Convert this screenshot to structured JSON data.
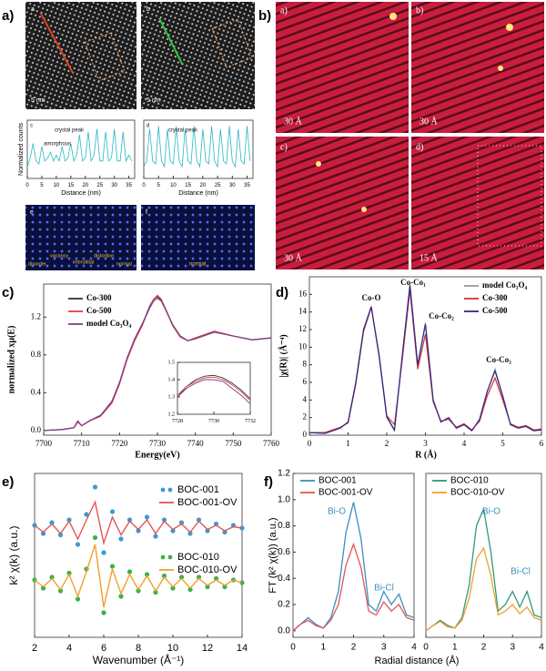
{
  "panel_labels": [
    "a)",
    "b)",
    "c)",
    "d)",
    "e)",
    "f)"
  ],
  "images": {
    "a": {
      "labels": [
        "a",
        "b",
        "5 nm",
        "5 nm",
        "e",
        "f",
        "disorder",
        "vacancy",
        "interstitial",
        "distortion",
        "normal",
        "normal"
      ]
    },
    "b": {
      "labels": [
        "a)",
        "b)",
        "c)",
        "d)",
        "30 Å",
        "30 Å",
        "30 Å",
        "15 Å"
      ]
    }
  },
  "chart_data": [
    {
      "type": "line",
      "xlabel": "Distance (nm)",
      "ylabel": "Normalized counts",
      "annotations": [
        "c",
        "crystal peak",
        "amorphous"
      ],
      "xlim": [
        0,
        37
      ],
      "xticks": [
        0,
        5,
        10,
        15,
        20,
        25,
        30,
        35
      ],
      "ylim": [
        0,
        1
      ],
      "x": [
        0,
        1,
        2,
        3,
        4,
        5,
        6,
        7,
        8,
        9,
        10,
        11,
        12,
        13,
        14,
        15,
        16,
        17,
        18,
        19,
        20,
        21,
        22,
        23,
        24,
        25,
        26,
        27,
        28,
        29,
        30,
        31,
        32,
        33,
        34,
        35,
        36
      ],
      "series": [
        {
          "color": "#2ab7c4",
          "values": [
            0.2,
            0.35,
            0.6,
            0.3,
            0.25,
            0.55,
            0.3,
            0.35,
            0.45,
            0.3,
            0.4,
            0.3,
            0.55,
            0.3,
            0.35,
            0.6,
            0.3,
            0.4,
            0.75,
            0.3,
            0.35,
            0.8,
            0.3,
            0.4,
            0.85,
            0.3,
            0.3,
            0.8,
            0.3,
            0.35,
            0.85,
            0.3,
            0.3,
            0.8,
            0.3,
            0.4,
            0.3
          ]
        }
      ]
    },
    {
      "type": "line",
      "xlabel": "Distance (nm)",
      "annotations": [
        "d",
        "crystal peak"
      ],
      "xlim": [
        0,
        37
      ],
      "xticks": [
        0,
        5,
        10,
        15,
        20,
        25,
        30,
        35
      ],
      "ylim": [
        0,
        1
      ],
      "x": [
        0,
        1,
        2,
        3,
        4,
        5,
        6,
        7,
        8,
        9,
        10,
        11,
        12,
        13,
        14,
        15,
        16,
        17,
        18,
        19,
        20,
        21,
        22,
        23,
        24,
        25,
        26,
        27,
        28,
        29,
        30,
        31,
        32,
        33,
        34,
        35,
        36
      ],
      "series": [
        {
          "color": "#2ab7c4",
          "values": [
            0.2,
            0.3,
            0.85,
            0.3,
            0.25,
            0.9,
            0.3,
            0.2,
            0.85,
            0.3,
            0.25,
            0.9,
            0.3,
            0.2,
            0.85,
            0.3,
            0.25,
            0.9,
            0.3,
            0.2,
            0.85,
            0.3,
            0.25,
            0.9,
            0.3,
            0.2,
            0.85,
            0.3,
            0.25,
            0.9,
            0.3,
            0.2,
            0.85,
            0.3,
            0.25,
            0.9,
            0.3
          ]
        }
      ]
    },
    {
      "type": "line",
      "xlabel": "Energy(eV)",
      "ylabel": "normalized xμ(E)",
      "xlim": [
        7700,
        7760
      ],
      "xticks": [
        7700,
        7710,
        7720,
        7730,
        7740,
        7750,
        7760
      ],
      "ylim": [
        -0.05,
        1.55
      ],
      "yticks": [
        {
          "value": 0,
          "label": "0.0"
        },
        0.4,
        0.8,
        1.2
      ],
      "x": [
        7700,
        7705,
        7708,
        7709,
        7710,
        7712,
        7715,
        7718,
        7720,
        7722,
        7724,
        7726,
        7728,
        7729,
        7730,
        7731,
        7732,
        7734,
        7736,
        7738,
        7740,
        7745,
        7750,
        7755,
        7760
      ],
      "series": [
        {
          "name": "Co-300",
          "color": "#333333",
          "values": [
            0,
            0.01,
            0.03,
            0.1,
            0.05,
            0.1,
            0.16,
            0.3,
            0.5,
            0.76,
            0.96,
            1.12,
            1.32,
            1.39,
            1.42,
            1.38,
            1.3,
            1.12,
            1.0,
            0.95,
            0.98,
            1.05,
            1.0,
            0.96,
            0.98
          ]
        },
        {
          "name": "Co-500",
          "color": "#e04040",
          "values": [
            0,
            0.01,
            0.03,
            0.09,
            0.05,
            0.1,
            0.15,
            0.29,
            0.49,
            0.75,
            0.95,
            1.11,
            1.31,
            1.39,
            1.43,
            1.39,
            1.3,
            1.11,
            0.99,
            0.95,
            0.98,
            1.05,
            1.0,
            0.96,
            0.98
          ]
        },
        {
          "name": "model Co₃O₄",
          "color": "#7a3f8f",
          "values": [
            0,
            0.01,
            0.03,
            0.1,
            0.05,
            0.1,
            0.16,
            0.31,
            0.51,
            0.77,
            0.97,
            1.13,
            1.3,
            1.37,
            1.4,
            1.37,
            1.29,
            1.12,
            1.0,
            0.95,
            0.97,
            1.04,
            1.0,
            0.96,
            0.98
          ]
        }
      ]
    },
    {
      "type": "line",
      "xlim": [
        7728,
        7732
      ],
      "xticks": [
        7728,
        7730,
        7732
      ],
      "ylim": [
        1.2,
        1.5
      ],
      "yticks": [
        1.2,
        1.3,
        1.4,
        1.5
      ],
      "x": [
        7728,
        7728.5,
        7729,
        7729.5,
        7730,
        7730.5,
        7731,
        7731.5,
        7732
      ],
      "series": [
        {
          "color": "#333333",
          "values": [
            1.3,
            1.36,
            1.4,
            1.42,
            1.425,
            1.41,
            1.38,
            1.34,
            1.29
          ]
        },
        {
          "color": "#e04040",
          "values": [
            1.31,
            1.36,
            1.39,
            1.41,
            1.415,
            1.4,
            1.37,
            1.33,
            1.28
          ]
        },
        {
          "color": "#7a3f8f",
          "values": [
            1.3,
            1.35,
            1.38,
            1.4,
            1.4,
            1.39,
            1.35,
            1.31,
            1.26
          ]
        }
      ]
    },
    {
      "type": "line",
      "xlabel": "R (Å)",
      "ylabel": "|χ(R)| (Å⁻⁴)",
      "annotations": [
        "Co-O",
        "Co-Co₁",
        "Co-Co₂",
        "Co-Co₃"
      ],
      "xlim": [
        0,
        6
      ],
      "xticks": [
        0,
        1,
        2,
        3,
        4,
        5,
        6
      ],
      "ylim": [
        0,
        18
      ],
      "yticks": [
        0,
        2,
        4,
        6,
        8,
        10,
        12,
        14,
        16
      ],
      "x": [
        0,
        0.4,
        0.8,
        1.0,
        1.2,
        1.4,
        1.6,
        1.8,
        2.0,
        2.2,
        2.4,
        2.6,
        2.8,
        3.0,
        3.2,
        3.4,
        3.6,
        3.8,
        4.0,
        4.2,
        4.4,
        4.6,
        4.8,
        5.0,
        5.2,
        5.4,
        5.6,
        5.8,
        6.0
      ],
      "series": [
        {
          "name": "model Co₃O₄",
          "color": "#9a9a9a",
          "values": [
            0.3,
            0.2,
            0.8,
            1.5,
            6,
            12,
            14.6,
            9,
            2,
            0.5,
            9,
            17.2,
            8,
            12.8,
            4,
            1.5,
            2,
            0.8,
            1.2,
            0.5,
            1.8,
            5,
            7.5,
            4.5,
            1.2,
            0.8,
            1,
            0.5,
            0.6
          ]
        },
        {
          "name": "Co-300",
          "color": "#d93030",
          "values": [
            0.3,
            0.3,
            0.9,
            1.4,
            5.8,
            11.8,
            14.5,
            9.2,
            2.2,
            1.2,
            8.5,
            16.5,
            7.5,
            11.5,
            3.8,
            1.6,
            1.8,
            0.9,
            1.3,
            0.6,
            1.6,
            4.5,
            6.5,
            4,
            1.3,
            0.9,
            1.1,
            0.6,
            0.7
          ]
        },
        {
          "name": "Co-500",
          "color": "#2a2a8a",
          "values": [
            0.3,
            0.2,
            0.8,
            1.5,
            6,
            12,
            14.6,
            9.1,
            2.1,
            0.6,
            9,
            17,
            8,
            12.6,
            4,
            1.5,
            2,
            0.8,
            1.2,
            0.5,
            1.8,
            5,
            7.3,
            4.4,
            1.2,
            0.8,
            1,
            0.5,
            0.6
          ]
        }
      ]
    },
    {
      "type": "line",
      "xlabel": "Wavenumber (Å⁻¹)",
      "ylabel": "k² χ(k) (a.u.)",
      "xlim": [
        2,
        14
      ],
      "xticks": [
        2,
        4,
        6,
        8,
        10,
        12,
        14
      ],
      "ylim": [
        -6,
        6
      ],
      "x": [
        2,
        2.5,
        3,
        3.5,
        4,
        4.5,
        5,
        5.5,
        6,
        6.5,
        7,
        7.5,
        8,
        8.5,
        9,
        9.5,
        10,
        10.5,
        11,
        11.5,
        12,
        12.5,
        13,
        13.5,
        14
      ],
      "series": [
        {
          "name": "BOC-001",
          "color": "#3a9bd0",
          "style": "dots",
          "values": [
            2.2,
            1.6,
            2.4,
            1.5,
            2.6,
            0.8,
            3.0,
            5.0,
            0.2,
            3.2,
            1.2,
            2.6,
            1.8,
            2.8,
            1.4,
            2.6,
            1.8,
            2.4,
            1.6,
            2.6,
            1.8,
            2.3,
            1.7,
            2.2,
            2.0
          ]
        },
        {
          "name": "BOC-001-OV",
          "color": "#e05555",
          "style": "line",
          "values": [
            2.2,
            1.7,
            2.3,
            1.6,
            2.5,
            1.2,
            2.6,
            3.9,
            0.9,
            2.8,
            1.5,
            2.5,
            1.9,
            2.6,
            1.6,
            2.5,
            1.9,
            2.3,
            1.7,
            2.5,
            1.9,
            2.2,
            1.8,
            2.1,
            2.0
          ]
        },
        {
          "name": "BOC-010",
          "color": "#3ab04a",
          "style": "dots",
          "values": [
            -1.8,
            -2.4,
            -1.6,
            -2.6,
            -1.3,
            -3.2,
            -1.0,
            1.3,
            -4.2,
            -0.8,
            -3.0,
            -1.2,
            -2.6,
            -1.4,
            -2.7,
            -1.5,
            -2.4,
            -1.6,
            -2.5,
            -1.6,
            -2.3,
            -1.7,
            -2.3,
            -1.8,
            -2.0
          ]
        },
        {
          "name": "BOC-010-OV",
          "color": "#f0a030",
          "style": "line",
          "values": [
            -1.8,
            -2.3,
            -1.7,
            -2.5,
            -1.4,
            -3.0,
            -1.2,
            0.8,
            -3.8,
            -1.0,
            -2.8,
            -1.4,
            -2.5,
            -1.5,
            -2.6,
            -1.6,
            -2.3,
            -1.7,
            -2.4,
            -1.7,
            -2.2,
            -1.8,
            -2.2,
            -1.8,
            -2.0
          ]
        }
      ]
    },
    {
      "type": "line",
      "xlabel": "Radial distance (Å)",
      "ylabel": "FT (k² χ(k)) (a.u.)",
      "annotations": [
        "Bi-O",
        "Bi-Cl"
      ],
      "xlim": [
        0,
        4
      ],
      "xticks": [
        0,
        1,
        2,
        3,
        4
      ],
      "ylim": [
        -0.05,
        1.2
      ],
      "yticks": [
        {
          "value": 0,
          "label": "0.0"
        },
        0.2,
        0.4,
        0.6,
        0.8,
        {
          "value": 1,
          "label": "1.0"
        },
        1.2
      ],
      "x": [
        0,
        0.25,
        0.5,
        0.75,
        1,
        1.25,
        1.5,
        1.75,
        2,
        2.25,
        2.5,
        2.75,
        3,
        3.25,
        3.5,
        3.75,
        4
      ],
      "series": [
        {
          "name": "BOC-001",
          "color": "#3a8fc0",
          "values": [
            0,
            0.05,
            0.1,
            0.05,
            0.02,
            0.1,
            0.3,
            0.75,
            0.98,
            0.7,
            0.2,
            0.15,
            0.3,
            0.2,
            0.28,
            0.12,
            0.1
          ]
        },
        {
          "name": "BOC-001-OV",
          "color": "#e05555",
          "values": [
            0,
            0.05,
            0.08,
            0.04,
            0.02,
            0.08,
            0.2,
            0.5,
            0.66,
            0.48,
            0.15,
            0.12,
            0.22,
            0.15,
            0.2,
            0.1,
            0.08
          ]
        }
      ]
    },
    {
      "type": "line",
      "annotations": [
        "Bi-O",
        "Bi-Cl"
      ],
      "xlim": [
        0,
        4
      ],
      "xticks": [
        0,
        1,
        2,
        3,
        4
      ],
      "ylim": [
        -0.05,
        1.2
      ],
      "x": [
        0,
        0.25,
        0.5,
        0.75,
        1,
        1.25,
        1.5,
        1.75,
        2,
        2.25,
        2.5,
        2.75,
        3,
        3.25,
        3.5,
        3.75,
        4
      ],
      "series": [
        {
          "name": "BOC-010",
          "color": "#2f9a7a",
          "values": [
            0,
            0.04,
            0.08,
            0.04,
            0.02,
            0.1,
            0.35,
            0.8,
            0.93,
            0.6,
            0.15,
            0.2,
            0.3,
            0.18,
            0.3,
            0.12,
            0.1
          ]
        },
        {
          "name": "BOC-010-OV",
          "color": "#f0a030",
          "values": [
            0,
            0.04,
            0.07,
            0.03,
            0.02,
            0.08,
            0.25,
            0.55,
            0.63,
            0.42,
            0.12,
            0.15,
            0.2,
            0.13,
            0.18,
            0.1,
            0.08
          ]
        }
      ]
    }
  ]
}
